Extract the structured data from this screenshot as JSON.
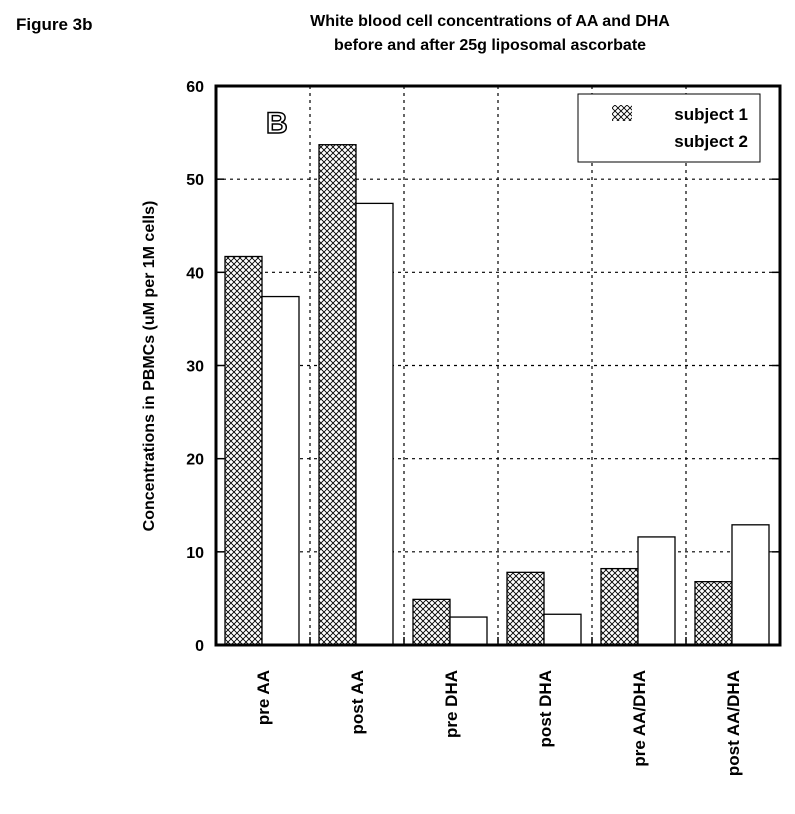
{
  "figure_label": "Figure 3b",
  "panel_letter": "B",
  "chart_data": {
    "type": "bar",
    "title": "White blood cell concentrations of AA and DHA",
    "subtitle": "before and after 25g liposomal ascorbate",
    "xlabel": "",
    "ylabel": "Concentrations in PBMCs (uM per 1M cells)",
    "ylim": [
      0,
      60
    ],
    "yticks": [
      0,
      10,
      20,
      30,
      40,
      50,
      60
    ],
    "grid": true,
    "legend_position": "top-right",
    "categories": [
      "pre AA",
      "post AA",
      "pre DHA",
      "post DHA",
      "pre AA/DHA",
      "post AA/DHA"
    ],
    "series": [
      {
        "name": "subject 1",
        "pattern": "crosshatch",
        "values": [
          41.7,
          53.7,
          4.9,
          7.8,
          8.2,
          6.8
        ]
      },
      {
        "name": "subject 2",
        "pattern": "white",
        "values": [
          37.4,
          47.4,
          3.0,
          3.3,
          11.6,
          12.9
        ]
      }
    ]
  }
}
